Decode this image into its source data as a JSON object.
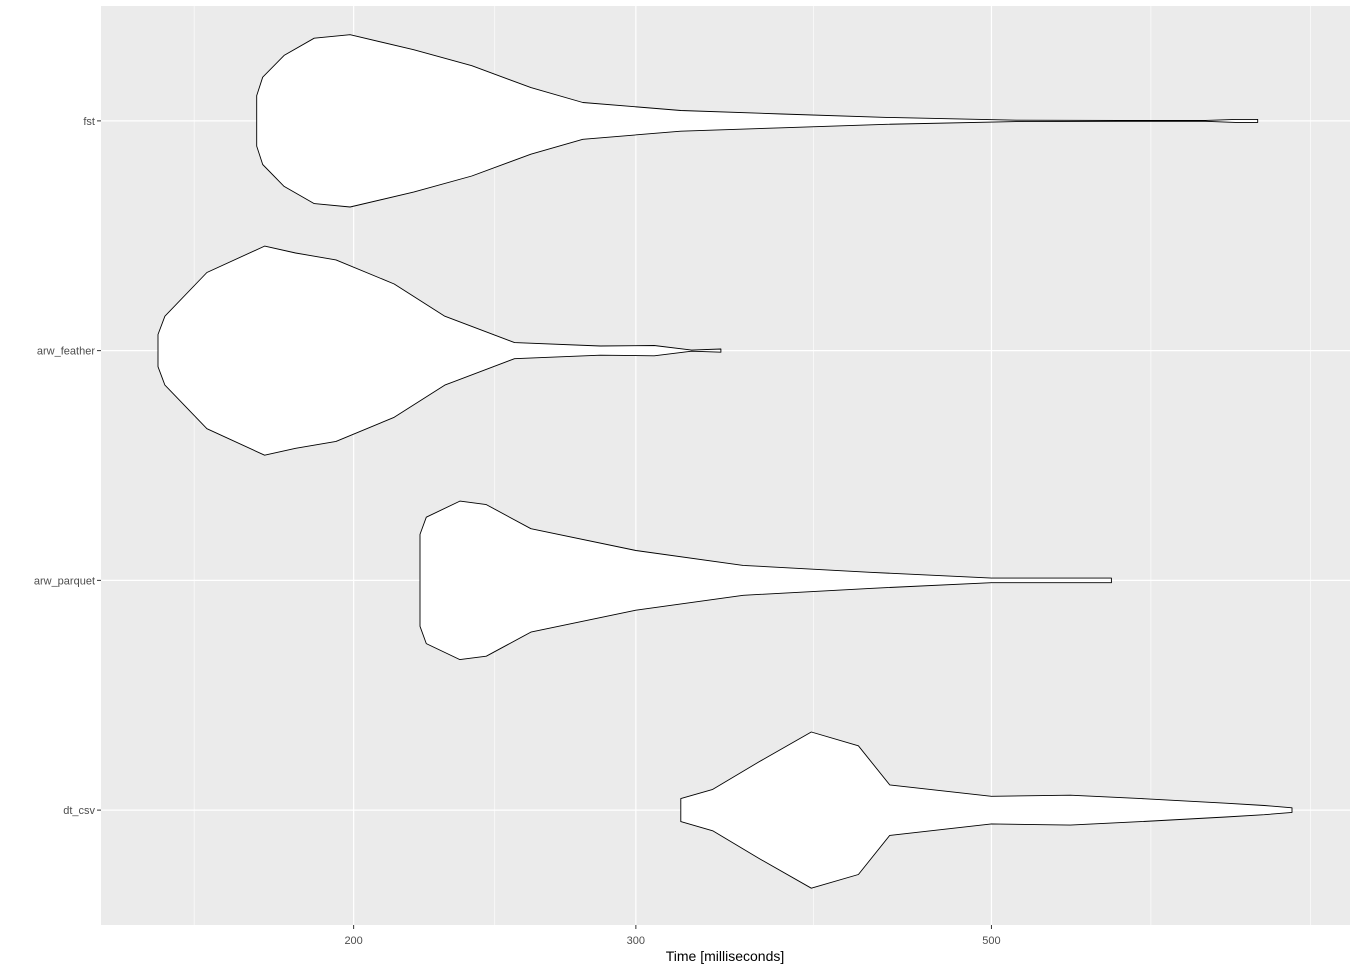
{
  "chart_data": {
    "type": "violin",
    "orientation": "horizontal",
    "title": "",
    "xlabel": "Time [milliseconds]",
    "ylabel": "",
    "x_scale": "log",
    "xlim": [
      151,
      770
    ],
    "x_ticks": [
      200,
      300,
      500
    ],
    "x_tick_labels": [
      "200",
      "300",
      "500"
    ],
    "grid": true,
    "legend": "none",
    "colors": {
      "panel_background": "#ebebeb",
      "grid": "#ffffff",
      "violin_fill": "#ffffff",
      "violin_outline": "#000000",
      "tick_label": "#4d4d4d"
    },
    "categories": [
      "fst",
      "arw_feather",
      "arw_parquet",
      "dt_csv"
    ],
    "series": [
      {
        "name": "fst",
        "range": [
          174,
          733
        ],
        "profile": [
          [
            174,
            0.22
          ],
          [
            175.5,
            0.38
          ],
          [
            181,
            0.57
          ],
          [
            189,
            0.72
          ],
          [
            199,
            0.75
          ],
          [
            218,
            0.62
          ],
          [
            237,
            0.48
          ],
          [
            258,
            0.29
          ],
          [
            278,
            0.16
          ],
          [
            320,
            0.09
          ],
          [
            370,
            0.06
          ],
          [
            430,
            0.03
          ],
          [
            518,
            0.006
          ],
          [
            600,
            0.004
          ],
          [
            680,
            0.004
          ],
          [
            710,
            0.013
          ],
          [
            733,
            0.013
          ]
        ]
      },
      {
        "name": "arw_feather",
        "range": [
          151,
          339
        ],
        "profile": [
          [
            151,
            0.14
          ],
          [
            152.5,
            0.3
          ],
          [
            162,
            0.68
          ],
          [
            176,
            0.91
          ],
          [
            184,
            0.85
          ],
          [
            195,
            0.79
          ],
          [
            212,
            0.58
          ],
          [
            228,
            0.3
          ],
          [
            252,
            0.07
          ],
          [
            285,
            0.04
          ],
          [
            308,
            0.045
          ],
          [
            325,
            0.005
          ],
          [
            339,
            0.014
          ]
        ]
      },
      {
        "name": "arw_parquet",
        "range": [
          220,
          594
        ],
        "profile": [
          [
            220,
            0.4
          ],
          [
            222,
            0.55
          ],
          [
            233,
            0.69
          ],
          [
            242,
            0.66
          ],
          [
            258,
            0.45
          ],
          [
            300,
            0.26
          ],
          [
            350,
            0.13
          ],
          [
            420,
            0.07
          ],
          [
            500,
            0.02
          ],
          [
            594,
            0.02
          ]
        ]
      },
      {
        "name": "dt_csv",
        "range": [
          320,
          770
        ],
        "profile": [
          [
            320,
            0.1
          ],
          [
            335,
            0.18
          ],
          [
            358,
            0.42
          ],
          [
            386,
            0.68
          ],
          [
            413,
            0.56
          ],
          [
            432,
            0.22
          ],
          [
            500,
            0.12
          ],
          [
            560,
            0.13
          ],
          [
            620,
            0.1
          ],
          [
            700,
            0.06
          ],
          [
            740,
            0.04
          ],
          [
            770,
            0.02
          ]
        ]
      }
    ]
  }
}
